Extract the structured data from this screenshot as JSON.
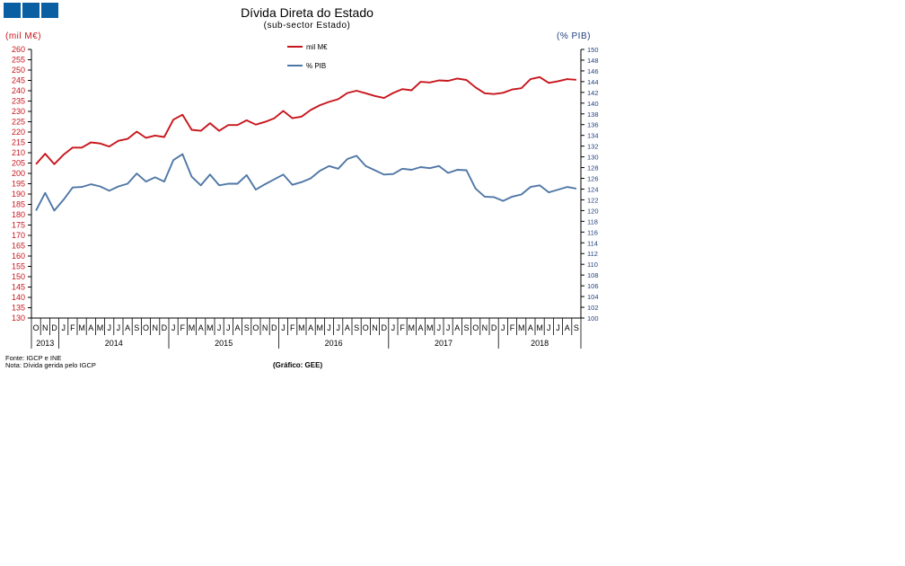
{
  "header": {
    "title": "Dívida Direta do Estado",
    "subtitle": "(sub-sector Estado)",
    "left_axis_unit": "(mil M€)",
    "right_axis_unit": "(% PIB)"
  },
  "footer": {
    "source": "Fonte: IGCP e INE",
    "note": "Nota: Dívida gerida pelo IGCP",
    "credit": "(Gráfico: GEE)"
  },
  "colors": {
    "series1": "#c8161d",
    "series2": "#4f77a6",
    "button": "#0a5fa3"
  },
  "chart_data": {
    "type": "line",
    "title": "Dívida Direta do Estado",
    "subtitle": "(sub-sector Estado)",
    "months": [
      "O",
      "N",
      "D",
      "J",
      "F",
      "M",
      "A",
      "M",
      "J",
      "J",
      "A",
      "S",
      "O",
      "N",
      "D",
      "J",
      "F",
      "M",
      "A",
      "M",
      "J",
      "J",
      "A",
      "S",
      "O",
      "N",
      "D",
      "J",
      "F",
      "M",
      "A",
      "M",
      "J",
      "J",
      "A",
      "S",
      "O",
      "N",
      "D",
      "J",
      "F",
      "M",
      "A",
      "M",
      "J",
      "J",
      "A",
      "S",
      "O",
      "N",
      "D",
      "J",
      "F",
      "M",
      "A",
      "M",
      "J",
      "J",
      "A",
      "S"
    ],
    "years": [
      {
        "label": "2013",
        "start": 0,
        "count": 3
      },
      {
        "label": "2014",
        "start": 3,
        "count": 12
      },
      {
        "label": "2015",
        "start": 15,
        "count": 12
      },
      {
        "label": "2016",
        "start": 27,
        "count": 12
      },
      {
        "label": "2017",
        "start": 39,
        "count": 12
      },
      {
        "label": "2018",
        "start": 51,
        "count": 9
      }
    ],
    "y_left": {
      "label": "(mil M€)",
      "min": 130,
      "max": 260,
      "step": 5
    },
    "y_right": {
      "label": "(% PIB)",
      "min": 100,
      "max": 150,
      "step": 2
    },
    "legend_position": "top-center",
    "series": [
      {
        "name": "mil M€",
        "axis": "left",
        "color": "#c8161d",
        "values": [
          204.5,
          209.5,
          204.5,
          209,
          212.5,
          212.5,
          215,
          214.5,
          213,
          215.8,
          216.7,
          220.2,
          217.2,
          218.3,
          217.6,
          226,
          228.4,
          221.1,
          220.6,
          224.3,
          220.6,
          223.4,
          223.4,
          225.7,
          223.6,
          224.9,
          226.6,
          230.2,
          226.7,
          227.5,
          230.7,
          233,
          234.6,
          235.9,
          238.9,
          240,
          238.8,
          237.5,
          236.5,
          238.9,
          240.8,
          240.2,
          244.3,
          244,
          245,
          244.8,
          245.9,
          245.2,
          241.6,
          238.8,
          238.4,
          239,
          240.6,
          241.2,
          245.6,
          246.6,
          243.8,
          244.6,
          245.6,
          245.3
        ]
      },
      {
        "name": "% PIB",
        "axis": "right",
        "color": "#4f77a6",
        "values": [
          120,
          123.3,
          120,
          122,
          124.3,
          124.4,
          124.9,
          124.5,
          123.7,
          124.5,
          125,
          126.9,
          125.4,
          126.2,
          125.4,
          129.4,
          130.5,
          126.3,
          124.7,
          126.7,
          124.7,
          125,
          125,
          126.6,
          123.9,
          124.9,
          125.8,
          126.7,
          124.8,
          125.3,
          126,
          127.4,
          128.3,
          127.8,
          129.6,
          130.2,
          128.3,
          127.5,
          126.7,
          126.8,
          127.8,
          127.6,
          128.1,
          127.9,
          128.3,
          127,
          127.6,
          127.5,
          124.1,
          122.6,
          122.5,
          121.8,
          122.6,
          123,
          124.4,
          124.7,
          123.4,
          123.9,
          124.4,
          124.1
        ]
      }
    ]
  }
}
